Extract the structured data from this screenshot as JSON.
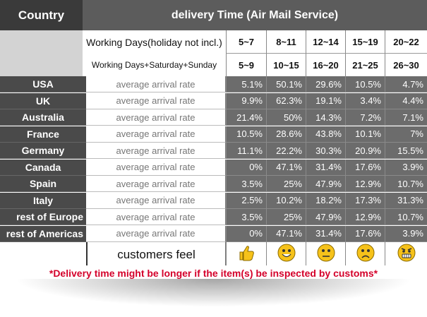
{
  "header": {
    "country_label": "Country",
    "title": "delivery Time (Air Mail Service)"
  },
  "working_days": {
    "label_business": "Working Days(holiday not incl.)",
    "label_calendar": "Working Days+Saturday+Sunday",
    "ranges_business": [
      "5~7",
      "8~11",
      "12~14",
      "15~19",
      "20~22"
    ],
    "ranges_calendar": [
      "5~9",
      "10~15",
      "16~20",
      "21~25",
      "26~30"
    ]
  },
  "rate_label": "average arrival rate",
  "rows": [
    {
      "country": "USA",
      "values": [
        "5.1%",
        "50.1%",
        "29.6%",
        "10.5%",
        "4.7%"
      ]
    },
    {
      "country": "UK",
      "values": [
        "9.9%",
        "62.3%",
        "19.1%",
        "3.4%",
        "4.4%"
      ]
    },
    {
      "country": "Australia",
      "values": [
        "21.4%",
        "50%",
        "14.3%",
        "7.2%",
        "7.1%"
      ]
    },
    {
      "country": "France",
      "values": [
        "10.5%",
        "28.6%",
        "43.8%",
        "10.1%",
        "7%"
      ]
    },
    {
      "country": "Germany",
      "values": [
        "11.1%",
        "22.2%",
        "30.3%",
        "20.9%",
        "15.5%"
      ]
    },
    {
      "country": "Canada",
      "values": [
        "0%",
        "47.1%",
        "31.4%",
        "17.6%",
        "3.9%"
      ]
    },
    {
      "country": "Spain",
      "values": [
        "3.5%",
        "25%",
        "47.9%",
        "12.9%",
        "10.7%"
      ]
    },
    {
      "country": "Italy",
      "values": [
        "2.5%",
        "10.2%",
        "18.2%",
        "17.3%",
        "31.3%"
      ]
    },
    {
      "country": "rest of Europe",
      "values": [
        "3.5%",
        "25%",
        "47.9%",
        "12.9%",
        "10.7%"
      ]
    },
    {
      "country": "rest of Americas",
      "values": [
        "0%",
        "47.1%",
        "31.4%",
        "17.6%",
        "3.9%"
      ]
    }
  ],
  "feel": {
    "label": "customers feel",
    "icons": [
      "thumbs-up-icon",
      "happy-face-icon",
      "neutral-face-icon",
      "sad-face-icon",
      "angry-face-icon"
    ]
  },
  "note": "*Delivery time might be longer if the item(s) be inspected by customs*",
  "colors": {
    "header_dark": "#3a3a3a",
    "value_cell": "#6c6c6c",
    "note_red": "#d4002a",
    "emoji_yellow": "#f6c21a"
  }
}
